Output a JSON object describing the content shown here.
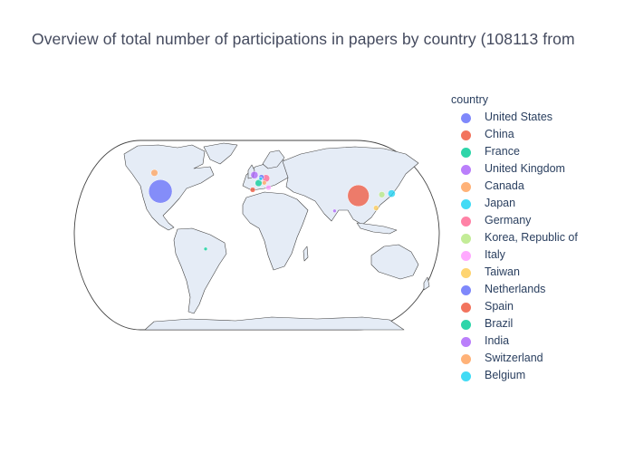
{
  "chart_data": {
    "type": "scatter",
    "subtype": "scatter_geo",
    "projection": "natural earth",
    "title": "Overview of total number of participations in papers by country (108113 from",
    "legend": {
      "title": "country",
      "placement": "right"
    },
    "series": [
      {
        "name": "United States",
        "lon": -98,
        "lat": 39,
        "size": 30000,
        "color": "#636efa"
      },
      {
        "name": "China",
        "lon": 104,
        "lat": 35,
        "size": 25000,
        "color": "#EF553B"
      },
      {
        "name": "France",
        "lon": 2.3,
        "lat": 46.6,
        "size": 2500,
        "color": "#00cc96"
      },
      {
        "name": "United Kingdom",
        "lon": -2,
        "lat": 54,
        "size": 3000,
        "color": "#ab63fa"
      },
      {
        "name": "Canada",
        "lon": -106,
        "lat": 56,
        "size": 2500,
        "color": "#FFA15A"
      },
      {
        "name": "Japan",
        "lon": 138,
        "lat": 37,
        "size": 3000,
        "color": "#19d3f3"
      },
      {
        "name": "Germany",
        "lon": 10,
        "lat": 51,
        "size": 3000,
        "color": "#FF6692"
      },
      {
        "name": "Korea, Republic of",
        "lon": 128,
        "lat": 36,
        "size": 2000,
        "color": "#B6E880"
      },
      {
        "name": "Italy",
        "lon": 12.5,
        "lat": 42.5,
        "size": 1500,
        "color": "#FF97FF"
      },
      {
        "name": "Taiwan",
        "lon": 121,
        "lat": 23.7,
        "size": 1500,
        "color": "#FECB52"
      },
      {
        "name": "Netherlands",
        "lon": 5.3,
        "lat": 52.1,
        "size": 1500,
        "color": "#636efa"
      },
      {
        "name": "Spain",
        "lon": -3.7,
        "lat": 40.4,
        "size": 1500,
        "color": "#EF553B"
      },
      {
        "name": "Brazil",
        "lon": -51,
        "lat": -14,
        "size": 600,
        "color": "#00cc96"
      },
      {
        "name": "India",
        "lon": 79,
        "lat": 21,
        "size": 600,
        "color": "#ab63fa"
      },
      {
        "name": "Switzerland",
        "lon": 8.2,
        "lat": 46.8,
        "size": 1000,
        "color": "#FFA15A"
      },
      {
        "name": "Belgium",
        "lon": 4.5,
        "lat": 50.5,
        "size": 700,
        "color": "#19d3f3"
      }
    ]
  }
}
